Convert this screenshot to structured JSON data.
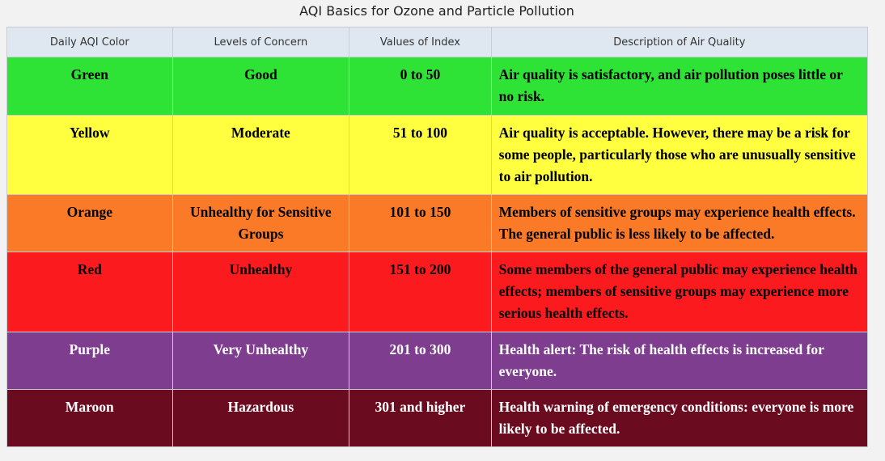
{
  "caption": "AQI Basics for Ozone and Particle Pollution",
  "headers": [
    "Daily AQI Color",
    "Levels of Concern",
    "Values of Index",
    "Description of Air Quality"
  ],
  "rows": [
    {
      "color_name": "Green",
      "level": "Good",
      "range": "0 to 50",
      "description": "Air quality is satisfactory, and air pollution poses little or no risk.",
      "bg": "#2ee236",
      "fg": "#000000"
    },
    {
      "color_name": "Yellow",
      "level": "Moderate",
      "range": "51 to 100",
      "description": "Air quality is acceptable. However, there may be a risk for some people, particularly those who are unusually sensitive to air pollution.",
      "bg": "#ffff3f",
      "fg": "#000000"
    },
    {
      "color_name": "Orange",
      "level": "Unhealthy for Sensitive Groups",
      "range": "101 to 150",
      "description": "Members of sensitive groups may experience health effects. The general public is less likely to be affected.",
      "bg": "#fa7a28",
      "fg": "#000000"
    },
    {
      "color_name": "Red",
      "level": "Unhealthy",
      "range": "151 to 200",
      "description": "Some members of the general public may experience health effects; members of sensitive groups may experience more serious health effects.",
      "bg": "#fb1b1e",
      "fg": "#000000"
    },
    {
      "color_name": "Purple",
      "level": "Very Unhealthy",
      "range": "201 to 300",
      "description": "Health alert: The risk of health effects is increased for everyone.",
      "bg": "#7e3d8f",
      "fg": "#ffffff"
    },
    {
      "color_name": "Maroon",
      "level": "Hazardous",
      "range": "301 and higher",
      "description": "Health warning of emergency conditions: everyone is more likely to be affected.",
      "bg": "#6b0b20",
      "fg": "#ffffff"
    }
  ]
}
